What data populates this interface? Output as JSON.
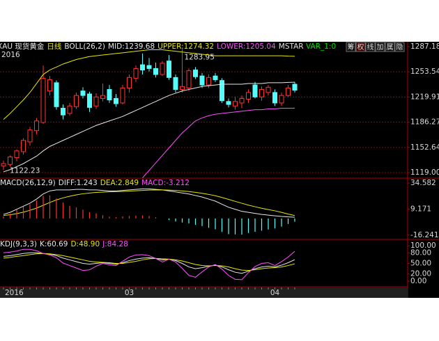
{
  "toolbar": [
    "筹",
    "权",
    "线",
    "加",
    "属",
    "隐"
  ],
  "chart_data": [
    {
      "type": "candlestick",
      "title": "XAU 现货黄金",
      "period": "日线",
      "indicator": "BOLL(26,2)",
      "year": "2016",
      "extra_labels": [
        {
          "text": "MSTAR",
          "color": "#e0e0e0"
        },
        {
          "text": "VAR_1:0",
          "color": "#00e000"
        }
      ],
      "up_color": "#ff3232",
      "down_color": "#54fcfc",
      "grid": true,
      "categories": [
        "2016",
        null,
        null,
        null,
        null,
        null,
        null,
        null,
        null,
        null,
        null,
        null,
        null,
        null,
        null,
        null,
        null,
        null,
        null,
        "03",
        null,
        null,
        null,
        null,
        null,
        null,
        null,
        null,
        null,
        null,
        null,
        null,
        null,
        null,
        null,
        null,
        null,
        null,
        null,
        null,
        null,
        "04",
        null,
        null,
        null
      ],
      "open": [
        1128,
        1130,
        1139,
        1147,
        1160,
        1175,
        1186,
        1228,
        1239,
        1205,
        1198,
        1207,
        1228,
        1224,
        1208,
        1218,
        1230,
        1218,
        1212,
        1232,
        1245,
        1263,
        1262,
        1258,
        1250,
        1268,
        1246,
        1230,
        1232,
        1256,
        1248,
        1236,
        1248,
        1242,
        1214,
        1208,
        1212,
        1217,
        1236,
        1220,
        1226,
        1226,
        1212,
        1222,
        1237
      ],
      "high": [
        1135,
        1142,
        1150,
        1165,
        1180,
        1192,
        1262,
        1248,
        1242,
        1210,
        1212,
        1226,
        1233,
        1227,
        1225,
        1238,
        1236,
        1224,
        1236,
        1250,
        1262,
        1278,
        1272,
        1266,
        1268,
        1276,
        1250,
        1283.95,
        1258,
        1260,
        1252,
        1250,
        1252,
        1245,
        1218,
        1220,
        1222,
        1230,
        1240,
        1234,
        1236,
        1230,
        1226,
        1236,
        1240
      ],
      "low": [
        1122.23,
        1127,
        1134,
        1143,
        1155,
        1170,
        1184,
        1222,
        1203,
        1190,
        1195,
        1204,
        1218,
        1200,
        1204,
        1214,
        1212,
        1207,
        1210,
        1226,
        1240,
        1250,
        1254,
        1246,
        1248,
        1243,
        1226,
        1226,
        1228,
        1244,
        1232,
        1232,
        1240,
        1212,
        1206,
        1203,
        1205,
        1212,
        1218,
        1215,
        1222,
        1208,
        1208,
        1220,
        1226
      ],
      "close": [
        1131,
        1140,
        1148,
        1162,
        1176,
        1188,
        1245,
        1243,
        1207,
        1196,
        1208,
        1222,
        1222,
        1206,
        1220,
        1222,
        1216,
        1211,
        1232,
        1246,
        1258,
        1256,
        1258,
        1250,
        1265,
        1246,
        1230,
        1234,
        1255,
        1247,
        1236,
        1246,
        1243,
        1215,
        1210,
        1214,
        1218,
        1226,
        1220,
        1230,
        1233,
        1212,
        1222,
        1232,
        1229
      ],
      "series": [
        {
          "name": "MID:1239.68",
          "color": "#e8e8e8",
          "values": [
            1120,
            1123,
            1127,
            1131,
            1136,
            1141,
            1148,
            1154,
            1158,
            1162,
            1166,
            1170,
            1174,
            1178,
            1182,
            1185,
            1188,
            1191,
            1194,
            1198,
            1202,
            1206,
            1210,
            1214,
            1218,
            1222,
            1225,
            1228,
            1230,
            1232,
            1234,
            1235,
            1236,
            1237,
            1237,
            1237,
            1237,
            1238,
            1238,
            1238,
            1239,
            1239,
            1239,
            1239.5,
            1239.68
          ]
        },
        {
          "name": "UPPER:1274.32",
          "color": "#e8e800",
          "values": [
            1190,
            1198,
            1207,
            1216,
            1226,
            1238,
            1250,
            1256,
            1260,
            1264,
            1267,
            1270,
            1272,
            1274,
            1275,
            1276,
            1277,
            1278,
            1279,
            1280,
            1281,
            1282,
            1283,
            1283,
            1283,
            1282,
            1281,
            1280,
            1279,
            1278,
            1277,
            1276,
            1275,
            1275,
            1275,
            1275,
            1275,
            1275,
            1275,
            1275,
            1275,
            1275,
            1275,
            1274.5,
            1274.32
          ]
        },
        {
          "name": "LOWER:1205.04",
          "color": "#ff50ff",
          "values": [
            null,
            null,
            null,
            null,
            null,
            null,
            null,
            null,
            null,
            null,
            null,
            null,
            null,
            null,
            null,
            null,
            null,
            null,
            null,
            null,
            null,
            1112,
            1122,
            1132,
            1142,
            1152,
            1162,
            1172,
            1180,
            1188,
            1192,
            1195,
            1197,
            1198,
            1199,
            1200,
            1201,
            1202,
            1203,
            1203,
            1204,
            1204,
            1205,
            1205,
            1205.04
          ]
        }
      ],
      "ylim": [
        1111.6,
        1293.7
      ],
      "yticks": [
        1287.18,
        1253.54,
        1219.91,
        1186.27,
        1152.64,
        {
          "value": 1119,
          "label": "1119.00"
        }
      ]
    },
    {
      "type": "macd",
      "title": "MACD(26,12,9)",
      "up_color": "#ff3232",
      "down_color": "#54fcfc",
      "series": [
        {
          "name": "DIFF:1.243",
          "color": "#e8e8e8",
          "values": [
            4,
            6,
            9,
            12,
            15,
            19,
            24,
            27,
            28,
            28,
            28,
            28.5,
            28.5,
            28,
            28,
            27.5,
            27,
            27,
            27.5,
            28,
            28.5,
            29,
            29,
            28.5,
            28,
            27,
            26,
            25,
            24,
            22.5,
            21,
            19,
            17,
            14,
            11,
            9,
            7,
            6,
            5,
            4,
            3.3,
            2.6,
            2,
            1.6,
            1.243
          ]
        },
        {
          "name": "DEA:2.849",
          "color": "#e8e800",
          "values": [
            3,
            3.6,
            4.7,
            6.2,
            8,
            10.2,
            12.9,
            15.7,
            18.2,
            20.2,
            21.8,
            23.1,
            24.2,
            24.9,
            25.5,
            25.9,
            26.1,
            26.3,
            26.5,
            26.8,
            27.1,
            27.5,
            27.8,
            27.9,
            28,
            27.8,
            27.5,
            27,
            26.4,
            25.6,
            24.7,
            23.6,
            22.3,
            20.6,
            18.7,
            16.8,
            14.9,
            13.1,
            11.5,
            10,
            8.7,
            7.5,
            6,
            4.3,
            2.849
          ]
        },
        {
          "name": "MACD:-3.212",
          "color": "#ff50ff",
          "type": "bar",
          "values": [
            2,
            4.8,
            8.6,
            11.6,
            14,
            17.6,
            22.2,
            22.6,
            19.6,
            15.6,
            12.4,
            10.8,
            8.6,
            6.2,
            5,
            3.2,
            1.8,
            1.4,
            2,
            2.4,
            2.8,
            3,
            2.4,
            1.2,
            0,
            -1.6,
            -3,
            -4,
            -4.8,
            -6.2,
            -7.4,
            -9.2,
            -10.6,
            -13.2,
            -15.4,
            -15.6,
            -15.8,
            -14.2,
            -13,
            -12,
            -10.8,
            -9.8,
            -8,
            -5.4,
            -3.212
          ]
        }
      ],
      "ylim": [
        -20.5,
        39.5
      ],
      "yticks": [
        34.582,
        9.171,
        -16.241
      ]
    },
    {
      "type": "line",
      "title": "KDJ(9,3,3)",
      "series": [
        {
          "name": "K:60.69",
          "color": "#e8e8e8",
          "values": [
            70,
            72,
            75,
            78,
            80,
            80,
            78,
            76,
            72,
            65,
            60,
            55,
            50,
            48,
            50,
            52,
            50,
            48,
            52,
            58,
            62,
            65,
            66,
            64,
            60,
            62,
            58,
            50,
            40,
            35,
            38,
            42,
            45,
            40,
            32,
            25,
            22,
            28,
            35,
            40,
            42,
            40,
            45,
            52,
            60.69
          ]
        },
        {
          "name": "D:48.90",
          "color": "#e8e800",
          "values": [
            65,
            67,
            70,
            72,
            75,
            77,
            78,
            77,
            75,
            72,
            68,
            64,
            60,
            56,
            54,
            53,
            52,
            50,
            50,
            53,
            56,
            60,
            63,
            64,
            63,
            62,
            60,
            57,
            52,
            47,
            44,
            43,
            44,
            43,
            40,
            35,
            31,
            30,
            32,
            35,
            37,
            38,
            40,
            44,
            48.9
          ]
        },
        {
          "name": "J:84.28",
          "color": "#ff50ff",
          "values": [
            80,
            82,
            85,
            90,
            90,
            86,
            78,
            74,
            66,
            51,
            44,
            37,
            30,
            32,
            42,
            50,
            46,
            44,
            56,
            68,
            74,
            75,
            72,
            64,
            54,
            62,
            54,
            36,
            16,
            11,
            26,
            40,
            47,
            34,
            16,
            5,
            4,
            24,
            41,
            50,
            52,
            44,
            55,
            68,
            84.28
          ]
        }
      ],
      "ylim": [
        -16,
        118
      ],
      "yticks": [
        {
          "value": 100,
          "label": "100.00"
        },
        {
          "value": 80,
          "label": "80.00"
        },
        {
          "value": 50,
          "label": "50.00"
        },
        {
          "value": 20,
          "label": "20.00"
        },
        {
          "value": 0,
          "label": "0.00"
        }
      ]
    }
  ]
}
